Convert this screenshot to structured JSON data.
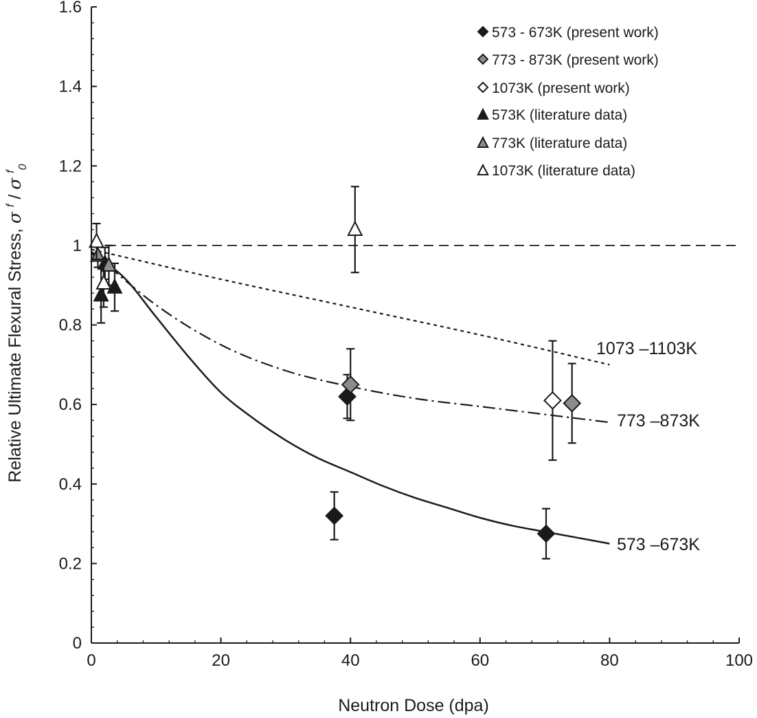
{
  "chart_data": {
    "type": "scatter",
    "xlabel": "Neutron Dose (dpa)",
    "ylabel": "Relative Ultimate Flexural Stress, σᶠ/σᶠ₀",
    "ylabel_prefix": "Relative Ultimate Flexural Stress, ",
    "ylabel_symbol": "σ",
    "ylabel_sup": "f",
    "ylabel_slash": "/",
    "ylabel_sub": "0",
    "xlim": [
      0,
      100
    ],
    "ylim": [
      0,
      1.6
    ],
    "x_ticks": [
      0,
      20,
      40,
      60,
      80,
      100
    ],
    "x_tick_labels": [
      "0",
      "20",
      "40",
      "60",
      "80",
      "100"
    ],
    "y_ticks": [
      0,
      0.2,
      0.4,
      0.6,
      0.8,
      1,
      1.2,
      1.4,
      1.6
    ],
    "y_tick_labels": [
      "0",
      "0.2",
      "0.4",
      "0.6",
      "0.8",
      "1",
      "1.2",
      "1.4",
      "1.6"
    ],
    "reference_line": {
      "y": 1,
      "style": "dashed"
    },
    "series": [
      {
        "name": "573 - 673K (present work)",
        "marker": "diamond",
        "fill": "#1a1a1a",
        "points": [
          {
            "x": 37.5,
            "y": 0.32,
            "err": 0.06
          },
          {
            "x": 39.5,
            "y": 0.62,
            "err": 0.055
          },
          {
            "x": 70.2,
            "y": 0.275,
            "err": 0.063
          }
        ]
      },
      {
        "name": "773 - 873K (present work)",
        "marker": "diamond",
        "fill": "#8c8c8c",
        "points": [
          {
            "x": 40.0,
            "y": 0.65,
            "err": 0.09
          },
          {
            "x": 74.2,
            "y": 0.603,
            "err": 0.1
          }
        ]
      },
      {
        "name": "1073K (present work)",
        "marker": "diamond",
        "fill": "#ffffff",
        "points": [
          {
            "x": 71.2,
            "y": 0.61,
            "err": 0.15
          }
        ]
      },
      {
        "name": "573K (literature data)",
        "marker": "triangle",
        "fill": "#1a1a1a",
        "points": [
          {
            "x": 1.5,
            "y": 0.875,
            "err": 0.07
          },
          {
            "x": 2.1,
            "y": 0.955,
            "err": 0.04
          },
          {
            "x": 3.6,
            "y": 0.895,
            "err": 0.06
          }
        ]
      },
      {
        "name": "773K (literature data)",
        "marker": "triangle",
        "fill": "#8c8c8c",
        "points": [
          {
            "x": 1.0,
            "y": 0.975,
            "err": 0.03
          },
          {
            "x": 2.7,
            "y": 0.95,
            "err": 0.05
          }
        ]
      },
      {
        "name": "1073K (literature data)",
        "marker": "triangle",
        "fill": "#ffffff",
        "points": [
          {
            "x": 0.8,
            "y": 1.01,
            "err": 0.045
          },
          {
            "x": 1.9,
            "y": 0.905,
            "err": 0.06
          },
          {
            "x": 40.7,
            "y": 1.04,
            "err": 0.108
          }
        ]
      }
    ],
    "curves": [
      {
        "name": "1073 –1103K",
        "style": "dotted",
        "points": [
          [
            0,
            0.99
          ],
          [
            20,
            0.915
          ],
          [
            40,
            0.845
          ],
          [
            60,
            0.775
          ],
          [
            80,
            0.7
          ]
        ]
      },
      {
        "name": "773 –873K",
        "style": "dashdot",
        "points": [
          [
            0,
            0.985
          ],
          [
            10,
            0.85
          ],
          [
            20,
            0.75
          ],
          [
            30,
            0.685
          ],
          [
            40,
            0.645
          ],
          [
            50,
            0.615
          ],
          [
            60,
            0.595
          ],
          [
            70,
            0.575
          ],
          [
            80,
            0.555
          ]
        ]
      },
      {
        "name": "573 –673K",
        "style": "solid",
        "points": [
          [
            0,
            0.98
          ],
          [
            5,
            0.92
          ],
          [
            10,
            0.82
          ],
          [
            15,
            0.72
          ],
          [
            20,
            0.63
          ],
          [
            25,
            0.565
          ],
          [
            30,
            0.51
          ],
          [
            35,
            0.465
          ],
          [
            40,
            0.43
          ],
          [
            45,
            0.395
          ],
          [
            50,
            0.365
          ],
          [
            55,
            0.34
          ],
          [
            60,
            0.315
          ],
          [
            65,
            0.295
          ],
          [
            70,
            0.28
          ],
          [
            75,
            0.265
          ],
          [
            80,
            0.25
          ]
        ]
      }
    ]
  }
}
